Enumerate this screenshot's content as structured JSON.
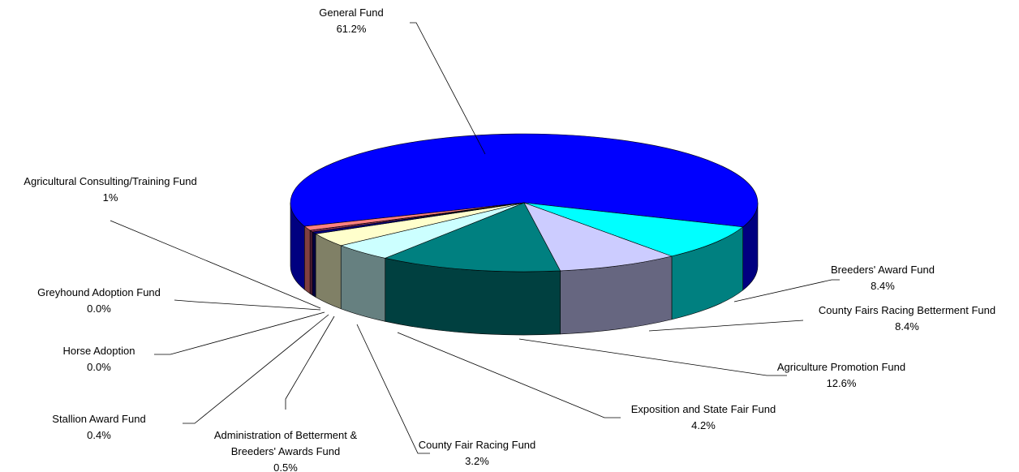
{
  "chart_data": {
    "type": "pie",
    "categories": [
      "General Fund",
      "Breeders' Award Fund",
      "County Fairs Racing Betterment Fund",
      "Agriculture Promotion Fund",
      "Exposition and State Fair Fund",
      "County Fair Racing Fund",
      "Administration of Betterment & Breeders' Awards Fund",
      "Stallion Award Fund",
      "Horse Adoption",
      "Greyhound Adoption Fund",
      "Agricultural Consulting/Training Fund"
    ],
    "values": [
      61.2,
      8.4,
      8.4,
      12.6,
      4.2,
      3.2,
      0.5,
      0.4,
      0.0,
      0.0,
      1
    ],
    "value_labels": [
      "61.2%",
      "8.4%",
      "8.4%",
      "12.6%",
      "4.2%",
      "3.2%",
      "0.5%",
      "0.4%",
      "0.0%",
      "0.0%",
      "1%"
    ],
    "colors": [
      "#0000ff",
      "#00ffff",
      "#ccccff",
      "#008080",
      "#ccffff",
      "#ffffcc",
      "#000080",
      "#993366",
      "#800080",
      "#333399",
      "#ff8080"
    ]
  }
}
